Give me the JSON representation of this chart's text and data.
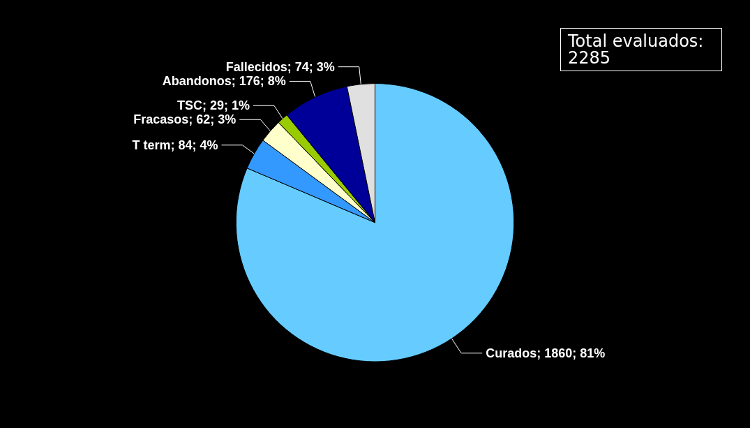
{
  "chart_data": {
    "type": "pie",
    "categories": [
      "Curados",
      "T term",
      "Fracasos",
      "TSC",
      "Abandonos",
      "Fallecidos"
    ],
    "values": [
      1860,
      84,
      62,
      29,
      176,
      74
    ],
    "value_labels": [
      "1860; 81%",
      "84; 4%",
      "62; 3%",
      "29; 1%",
      "176; 8%",
      "74; 3%"
    ],
    "colors": [
      "#66ccff",
      "#3399ff",
      "#ffffcc",
      "#99cc00",
      "#000099",
      "#e0e0e0"
    ],
    "annotations": [
      "Total evaluados: 2285"
    ],
    "legend": false
  }
}
